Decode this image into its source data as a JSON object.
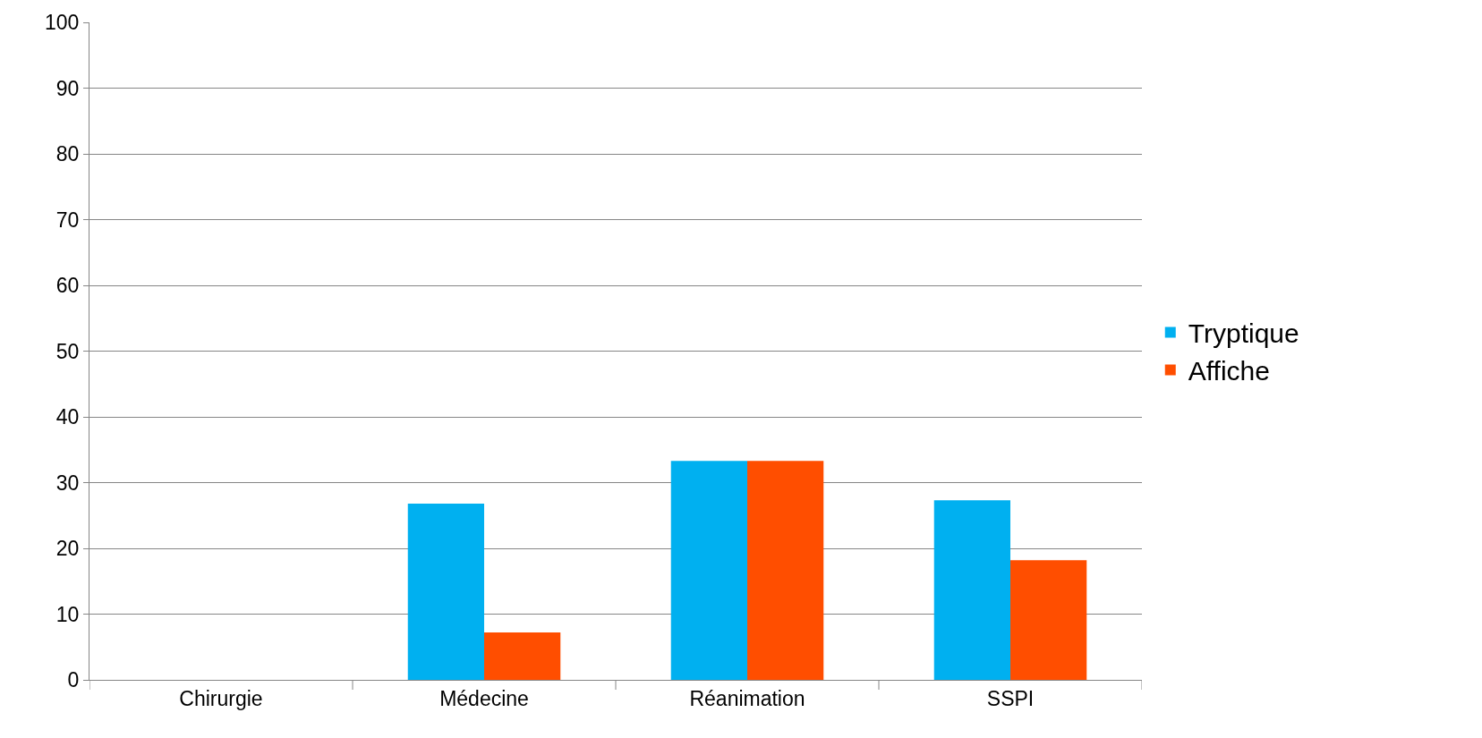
{
  "chart_data": {
    "type": "bar",
    "categories": [
      "Chirurgie",
      "Médecine",
      "Réanimation",
      "SSPI"
    ],
    "series": [
      {
        "name": "Tryptique",
        "color": "#00b0f0",
        "values": [
          0,
          26.8,
          33.3,
          27.3
        ]
      },
      {
        "name": "Affiche",
        "color": "#ff4e00",
        "values": [
          0,
          7.2,
          33.3,
          18.2
        ]
      }
    ],
    "ylim": [
      0,
      100
    ],
    "yticks": [
      0,
      10,
      20,
      30,
      40,
      50,
      60,
      70,
      80,
      90,
      100
    ],
    "grid": "y",
    "legend": "right"
  }
}
